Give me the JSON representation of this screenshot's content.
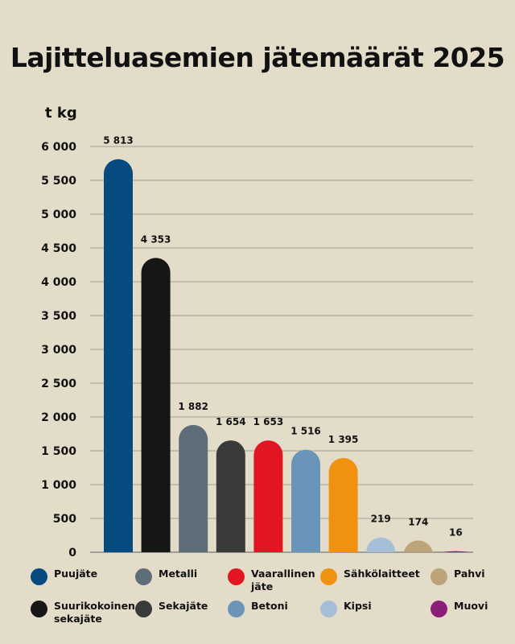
{
  "chart_data": {
    "type": "bar",
    "title": "Lajitteluasemien jätemäärät 2025",
    "ylabel": "t kg",
    "ylim": [
      0,
      6000
    ],
    "yticks": [
      "0",
      "500",
      "1 000",
      "1 500",
      "2 000",
      "2 500",
      "3 000",
      "3 500",
      "4 000",
      "4 500",
      "5 000",
      "5 500",
      "6 000"
    ],
    "grid": true,
    "legend_position": "bottom",
    "categories": [
      "Puujäte",
      "Suurikokoinen sekajäte",
      "Metalli",
      "Sekajäte",
      "Vaarallinen jäte",
      "Betoni",
      "Sähkölaitteet",
      "Kipsi",
      "Pahvi",
      "Muovi"
    ],
    "values": [
      5813,
      4353,
      1882,
      1654,
      1653,
      1516,
      1395,
      219,
      174,
      16
    ],
    "value_labels": [
      "5 813",
      "4 353",
      "1 882",
      "1 654",
      "1 653",
      "1 516",
      "1 395",
      "219",
      "174",
      "16"
    ],
    "colors": [
      "#064a80",
      "#161616",
      "#5d6e78",
      "#3a3a3a",
      "#e11622",
      "#6b95b8",
      "#f0910f",
      "#a6bfd8",
      "#bda37a",
      "#8c1e78"
    ]
  },
  "legend": [
    {
      "label": "Puujäte",
      "color": "#064a80"
    },
    {
      "label": "Metalli",
      "color": "#5d6e78"
    },
    {
      "label": "Vaarallinen jäte",
      "color": "#e11622"
    },
    {
      "label": "Sähkölaitteet",
      "color": "#f0910f"
    },
    {
      "label": "Pahvi",
      "color": "#bda37a"
    },
    {
      "label": "Suurikokoinen sekajäte",
      "color": "#161616"
    },
    {
      "label": "Sekajäte",
      "color": "#3a3a3a"
    },
    {
      "label": "Betoni",
      "color": "#6b95b8"
    },
    {
      "label": "Kipsi",
      "color": "#a6bfd8"
    },
    {
      "label": "Muovi",
      "color": "#8c1e78"
    }
  ]
}
